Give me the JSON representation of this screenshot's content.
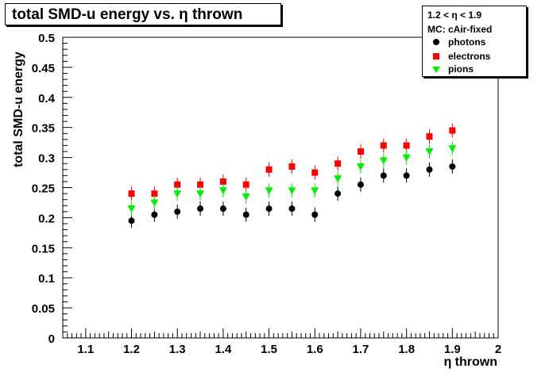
{
  "title": "total SMD-u energy vs. η thrown",
  "chart_data": {
    "type": "scatter",
    "title": "total SMD-u energy vs. η thrown",
    "xlabel": "η thrown",
    "ylabel": "total SMD-u energy",
    "xlim": [
      1.05,
      2.0
    ],
    "ylim": [
      0,
      0.5
    ],
    "x_ticks": [
      "1.1",
      "1.2",
      "1.3",
      "1.4",
      "1.5",
      "1.6",
      "1.7",
      "1.8",
      "1.9",
      "2"
    ],
    "y_ticks": [
      "0",
      "0.05",
      "0.1",
      "0.15",
      "0.2",
      "0.25",
      "0.3",
      "0.35",
      "0.4",
      "0.45",
      "0.5"
    ],
    "legend": {
      "placement": "top-right",
      "header": [
        "1.2 < η < 1.9",
        "MC: cAir-fixed"
      ],
      "entries": [
        "photons",
        "electrons",
        "pions"
      ]
    },
    "series": [
      {
        "name": "photons",
        "marker": "circle",
        "color": "#000000",
        "x": [
          1.2,
          1.25,
          1.3,
          1.35,
          1.4,
          1.45,
          1.5,
          1.55,
          1.6,
          1.65,
          1.7,
          1.75,
          1.8,
          1.85,
          1.9
        ],
        "y": [
          0.195,
          0.205,
          0.21,
          0.215,
          0.215,
          0.205,
          0.215,
          0.215,
          0.205,
          0.24,
          0.255,
          0.27,
          0.27,
          0.28,
          0.285
        ]
      },
      {
        "name": "electrons",
        "marker": "square",
        "color": "#ff0000",
        "x": [
          1.2,
          1.25,
          1.3,
          1.35,
          1.4,
          1.45,
          1.5,
          1.55,
          1.6,
          1.65,
          1.7,
          1.75,
          1.8,
          1.85,
          1.9
        ],
        "y": [
          0.24,
          0.24,
          0.255,
          0.255,
          0.26,
          0.255,
          0.28,
          0.285,
          0.275,
          0.29,
          0.31,
          0.32,
          0.32,
          0.335,
          0.345
        ]
      },
      {
        "name": "pions",
        "marker": "triangle-down",
        "color": "#00ee00",
        "x": [
          1.2,
          1.25,
          1.3,
          1.35,
          1.4,
          1.45,
          1.5,
          1.55,
          1.6,
          1.65,
          1.7,
          1.75,
          1.8,
          1.85,
          1.9
        ],
        "y": [
          0.215,
          0.225,
          0.24,
          0.24,
          0.245,
          0.235,
          0.245,
          0.245,
          0.245,
          0.265,
          0.285,
          0.295,
          0.3,
          0.31,
          0.315
        ]
      }
    ]
  }
}
